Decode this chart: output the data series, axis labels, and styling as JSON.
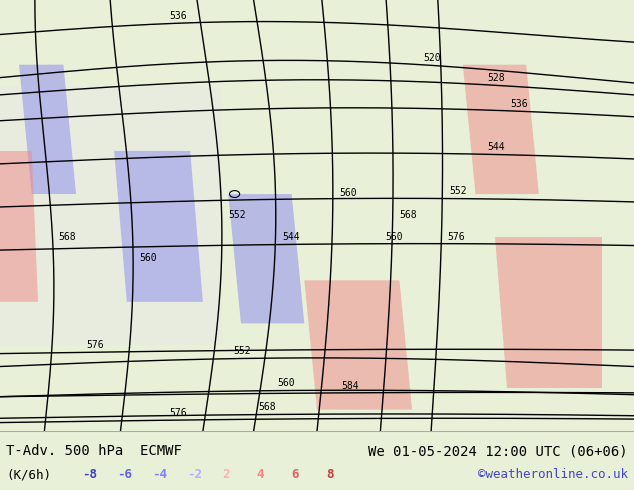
{
  "title_left": "T-Adv. 500 hPa  ECMWF",
  "title_right": "We 01-05-2024 12:00 UTC (06+06)",
  "unit_label": "(K/6h)",
  "website": "©weatheronline.co.uk",
  "colorbar_values": [
    -8,
    -6,
    -4,
    -2,
    2,
    4,
    6,
    8
  ],
  "colorbar_colors": [
    "#4040c0",
    "#6060e0",
    "#8080ff",
    "#b0b0ff",
    "#ffb0b0",
    "#ff8080",
    "#e06060",
    "#c04040"
  ],
  "background_color": "#e8f0d8",
  "fig_width": 6.34,
  "fig_height": 4.9,
  "bottom_bar_color": "#f0f0f0",
  "bottom_text_color": "#000000",
  "website_color": "#4444cc"
}
